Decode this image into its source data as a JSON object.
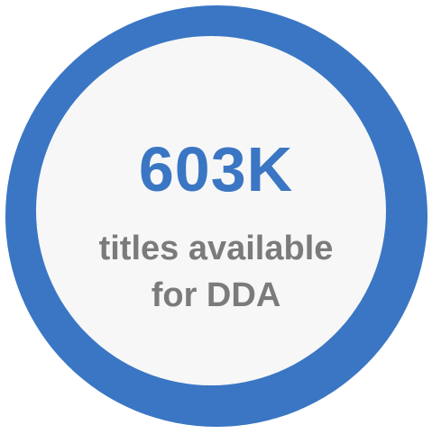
{
  "badge": {
    "value": "603K",
    "caption_line1": "titles available",
    "caption_line2": "for DDA",
    "colors": {
      "ring": "#3a76c4",
      "inner": "#f7f7f7",
      "value_text": "#3a76c4",
      "caption_text": "#7b7b7b"
    }
  }
}
